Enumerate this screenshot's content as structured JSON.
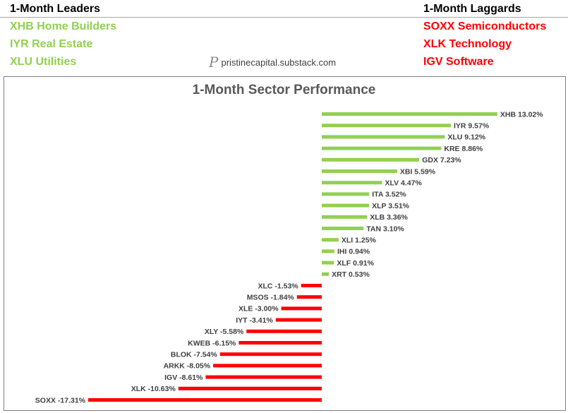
{
  "header": {
    "leaders_title": "1-Month Leaders",
    "leaders": [
      "XHB Home Builders",
      "IYR Real Estate",
      "XLU Utilities"
    ],
    "laggards_title": "1-Month Laggards",
    "laggards": [
      "SOXX Semiconductors",
      "XLK Technology",
      "IGV Software"
    ],
    "watermark": "pristinecapital.substack.com",
    "watermark_logo": "P"
  },
  "colors": {
    "positive": "#92d050",
    "negative": "#ff0000",
    "label": "#404040",
    "title": "#595959"
  },
  "chart_data": {
    "type": "bar",
    "orientation": "horizontal",
    "title": "1-Month Sector Performance",
    "unit": "%",
    "categories": [
      "XHB",
      "IYR",
      "XLU",
      "KRE",
      "GDX",
      "XBI",
      "XLV",
      "ITA",
      "XLP",
      "XLB",
      "TAN",
      "XLI",
      "IHI",
      "XLF",
      "XRT",
      "XLC",
      "MSOS",
      "XLE",
      "IYT",
      "XLY",
      "KWEB",
      "BLOK",
      "ARKK",
      "IGV",
      "XLK",
      "SOXX"
    ],
    "values": [
      13.02,
      9.57,
      9.12,
      8.86,
      7.23,
      5.59,
      4.47,
      3.52,
      3.51,
      3.36,
      3.1,
      1.25,
      0.94,
      0.91,
      0.53,
      -1.53,
      -1.84,
      -3.0,
      -3.41,
      -5.58,
      -6.15,
      -7.54,
      -8.05,
      -8.61,
      -10.63,
      -17.31
    ],
    "labels": [
      "XHB 13.02%",
      "IYR 9.57%",
      "XLU 9.12%",
      "KRE 8.86%",
      "GDX 7.23%",
      "XBI 5.59%",
      "XLV 4.47%",
      "ITA 3.52%",
      "XLP 3.51%",
      "XLB 3.36%",
      "TAN 3.10%",
      "XLI 1.25%",
      "IHI 0.94%",
      "XLF 0.91%",
      "XRT 0.53%",
      "XLC -1.53%",
      "MSOS -1.84%",
      "XLE -3.00%",
      "IYT -3.41%",
      "XLY -5.58%",
      "KWEB -6.15%",
      "BLOK -7.54%",
      "ARKK -8.05%",
      "IGV -8.61%",
      "XLK -10.63%",
      "SOXX -17.31%"
    ],
    "xlim": [
      -17.31,
      13.02
    ],
    "gridlines": false,
    "legend": "none"
  }
}
